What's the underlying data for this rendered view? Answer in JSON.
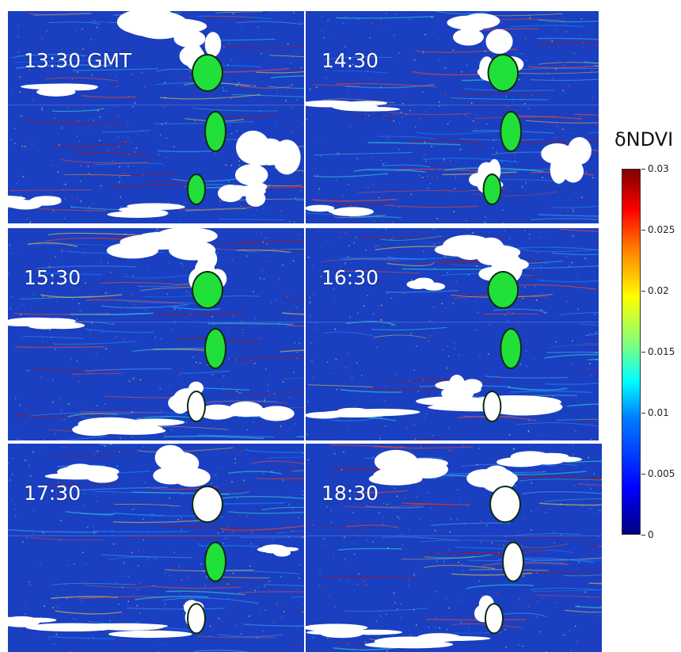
{
  "panels": [
    {
      "label": "13:30 GMT"
    },
    {
      "label": "14:30"
    },
    {
      "label": "15:30"
    },
    {
      "label": "16:30"
    },
    {
      "label": "17:30"
    },
    {
      "label": "18:30"
    }
  ],
  "colorbar": {
    "title": "δNDVI",
    "ticks": [
      "0",
      "0.005",
      "0.01",
      "0.015",
      "0.02",
      "0.025",
      "0.03"
    ],
    "min": 0,
    "max": 0.03,
    "colormap": "jet"
  },
  "colors": {
    "ocean": "#1a3fc0",
    "cloud": "#ffffff",
    "island": "#22e03a"
  }
}
